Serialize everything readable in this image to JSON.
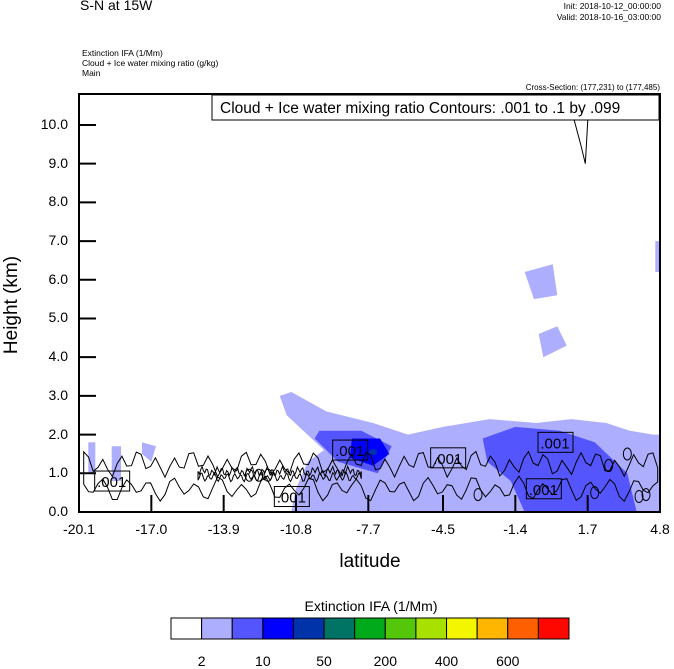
{
  "header": {
    "title": "S-N at 15W",
    "init": "Init: 2018-10-12_00:00:00",
    "valid": "Valid: 2018-10-16_03:00:00",
    "fields": [
      "Extinction IFA   (1/Mm)",
      "Cloud + Ice water mixing ratio   (g/kg)",
      "Main"
    ],
    "cross_section": "Cross-Section: (177,231) to (177,485)"
  },
  "chart_data": {
    "type": "heatmap",
    "title": "S-N at 15W",
    "xlabel": "latitude",
    "ylabel": "Height (km)",
    "xlim": [
      -20.1,
      4.8
    ],
    "ylim": [
      0.0,
      10.8
    ],
    "x_ticks": [
      "-20.1",
      "-17.0",
      "-13.9",
      "-10.8",
      "-7.7",
      "-4.5",
      "-1.4",
      "1.7",
      "4.8"
    ],
    "x_tick_values": [
      -20.1,
      -17.0,
      -13.9,
      -10.8,
      -7.7,
      -4.5,
      -1.4,
      1.7,
      4.8
    ],
    "y_ticks": [
      "0.0",
      "1.0",
      "2.0",
      "3.0",
      "4.0",
      "5.0",
      "6.0",
      "7.0",
      "8.0",
      "9.0",
      "10.0"
    ],
    "y_tick_values": [
      0,
      1,
      2,
      3,
      4,
      5,
      6,
      7,
      8,
      9,
      10
    ],
    "grid": false,
    "contour_annotation": "Cloud + Ice water mixing ratio Contours: .001 to .1 by .099",
    "contour_labels": [
      {
        "text": ".001",
        "lat": -18.7,
        "height": 0.8
      },
      {
        "text": ".001",
        "lat": -8.5,
        "height": 1.6
      },
      {
        "text": ".001",
        "lat": -11.0,
        "height": 0.4
      },
      {
        "text": ".001",
        "lat": -4.3,
        "height": 1.4
      },
      {
        "text": ".001",
        "lat": 0.3,
        "height": 1.8
      },
      {
        "text": ".001",
        "lat": -0.2,
        "height": 0.6
      }
    ],
    "fill_regions": [
      {
        "level": 1,
        "desc": "light",
        "points": [
          [
            -11.5,
            3.0
          ],
          [
            -11.0,
            3.1
          ],
          [
            -9.5,
            2.6
          ],
          [
            -7.5,
            2.3
          ],
          [
            -6.0,
            2.0
          ],
          [
            -4.5,
            2.2
          ],
          [
            -2.5,
            2.4
          ],
          [
            -0.5,
            2.3
          ],
          [
            1.0,
            2.4
          ],
          [
            2.5,
            2.3
          ],
          [
            3.5,
            2.1
          ],
          [
            4.5,
            2.0
          ],
          [
            4.8,
            2.0
          ],
          [
            4.8,
            0
          ],
          [
            -11.0,
            0
          ],
          [
            -10.8,
            0.6
          ],
          [
            -10.3,
            1.3
          ],
          [
            -9.6,
            1.6
          ],
          [
            -11.2,
            2.5
          ],
          [
            -11.5,
            3.0
          ]
        ]
      },
      {
        "level": 1,
        "desc": "light",
        "points": [
          [
            -19.7,
            1.8
          ],
          [
            -19.4,
            1.8
          ],
          [
            -19.4,
            1.0
          ],
          [
            -19.7,
            1.0
          ]
        ]
      },
      {
        "level": 1,
        "desc": "light",
        "points": [
          [
            -18.7,
            1.7
          ],
          [
            -18.3,
            1.7
          ],
          [
            -18.3,
            0.8
          ],
          [
            -18.7,
            0.8
          ]
        ]
      },
      {
        "level": 1,
        "desc": "light",
        "points": [
          [
            -17.4,
            1.8
          ],
          [
            -16.8,
            1.7
          ],
          [
            -17.0,
            1.3
          ],
          [
            -17.4,
            1.5
          ]
        ]
      },
      {
        "level": 1,
        "desc": "light",
        "points": [
          [
            -1.0,
            6.2
          ],
          [
            0.2,
            6.4
          ],
          [
            0.4,
            5.6
          ],
          [
            -0.6,
            5.5
          ]
        ]
      },
      {
        "level": 1,
        "desc": "light",
        "points": [
          [
            -0.4,
            4.6
          ],
          [
            0.4,
            4.8
          ],
          [
            0.8,
            4.3
          ],
          [
            -0.2,
            4.0
          ]
        ]
      },
      {
        "level": 1,
        "desc": "light",
        "points": [
          [
            4.6,
            7.0
          ],
          [
            4.8,
            7.0
          ],
          [
            4.8,
            6.2
          ],
          [
            4.6,
            6.2
          ]
        ]
      },
      {
        "level": 2,
        "desc": "medium",
        "points": [
          [
            -9.8,
            2.1
          ],
          [
            -8.0,
            2.1
          ],
          [
            -6.7,
            1.7
          ],
          [
            -7.3,
            1.0
          ],
          [
            -9.0,
            1.3
          ],
          [
            -10.0,
            1.9
          ]
        ]
      },
      {
        "level": 2,
        "desc": "medium",
        "points": [
          [
            -2.8,
            1.9
          ],
          [
            -1.4,
            2.2
          ],
          [
            0.5,
            2.1
          ],
          [
            2.0,
            1.8
          ],
          [
            3.4,
            1.0
          ],
          [
            3.8,
            0
          ],
          [
            -1.0,
            0
          ],
          [
            -1.6,
            0.8
          ],
          [
            -2.6,
            1.3
          ]
        ]
      },
      {
        "level": 3,
        "desc": "strong",
        "points": [
          [
            -8.4,
            1.9
          ],
          [
            -7.2,
            1.9
          ],
          [
            -6.8,
            1.5
          ],
          [
            -7.5,
            1.2
          ],
          [
            -8.5,
            1.4
          ]
        ]
      }
    ],
    "contours": [
      {
        "level": ".001",
        "desc": "low cloud band"
      },
      {
        "level": ".001",
        "desc": "upper cloud near 1.7"
      }
    ]
  },
  "colorbar": {
    "title": "Extinction IFA  (1/Mm)",
    "colors": [
      "#ffffff",
      "#aeaefe",
      "#5555fe",
      "#0000fe",
      "#0033aa",
      "#007464",
      "#00aa1a",
      "#54c70b",
      "#a8e100",
      "#f4f600",
      "#feb600",
      "#fe5f00",
      "#fe0700"
    ],
    "labels": [
      "2",
      "10",
      "50",
      "200",
      "400",
      "600"
    ]
  },
  "colors": {
    "level1": "#aeaefe",
    "level2": "#5555fe",
    "level3": "#0000fe",
    "level4": "#0033aa",
    "level5": "#007464"
  }
}
